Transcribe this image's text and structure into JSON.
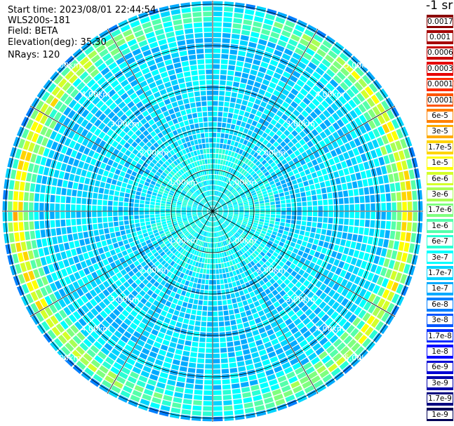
{
  "header": {
    "start_time": "Start time: 2023/08/01 22:44:54",
    "instrument": "WLS200s-181",
    "field": "Field: BETA",
    "elevation": "Elevation(deg): 35.30",
    "nrays": "NRays: 120"
  },
  "plot": {
    "ring_labels": [
      "1.00km",
      "2.00km",
      "3.00km",
      "4.00km",
      "5.00km"
    ],
    "n_rays": 120,
    "range_gates": 40
  },
  "colorbar": {
    "unit": "-1 sr",
    "levels": [
      {
        "label": "0.0017",
        "color": "#8b0000"
      },
      {
        "label": "0.001",
        "color": "#a50000"
      },
      {
        "label": "0.0006",
        "color": "#c80000"
      },
      {
        "label": "0.0003",
        "color": "#e60000"
      },
      {
        "label": "0.00017",
        "color": "#ff2a00"
      },
      {
        "label": "0.0001",
        "color": "#ff5500"
      },
      {
        "label": "6e-5",
        "color": "#ff7f00"
      },
      {
        "label": "3e-5",
        "color": "#ffaa00"
      },
      {
        "label": "1.7e-5",
        "color": "#ffd400"
      },
      {
        "label": "1e-5",
        "color": "#ffff00"
      },
      {
        "label": "6e-6",
        "color": "#d4ff2a"
      },
      {
        "label": "3e-6",
        "color": "#aaff55"
      },
      {
        "label": "1.7e-6",
        "color": "#7fff7f"
      },
      {
        "label": "1e-6",
        "color": "#55ffaa"
      },
      {
        "label": "6e-7",
        "color": "#2affd4"
      },
      {
        "label": "3e-7",
        "color": "#00ffff"
      },
      {
        "label": "1.7e-7",
        "color": "#00d4ff"
      },
      {
        "label": "1e-7",
        "color": "#00aaff"
      },
      {
        "label": "6e-8",
        "color": "#007fff"
      },
      {
        "label": "3e-8",
        "color": "#0055ff"
      },
      {
        "label": "1.7e-8",
        "color": "#002aff"
      },
      {
        "label": "1e-8",
        "color": "#0000ff"
      },
      {
        "label": "6e-9",
        "color": "#0000d4"
      },
      {
        "label": "3e-9",
        "color": "#0000aa"
      },
      {
        "label": "1.7e-9",
        "color": "#00007f"
      },
      {
        "label": "1e-9",
        "color": "#000055"
      }
    ]
  }
}
